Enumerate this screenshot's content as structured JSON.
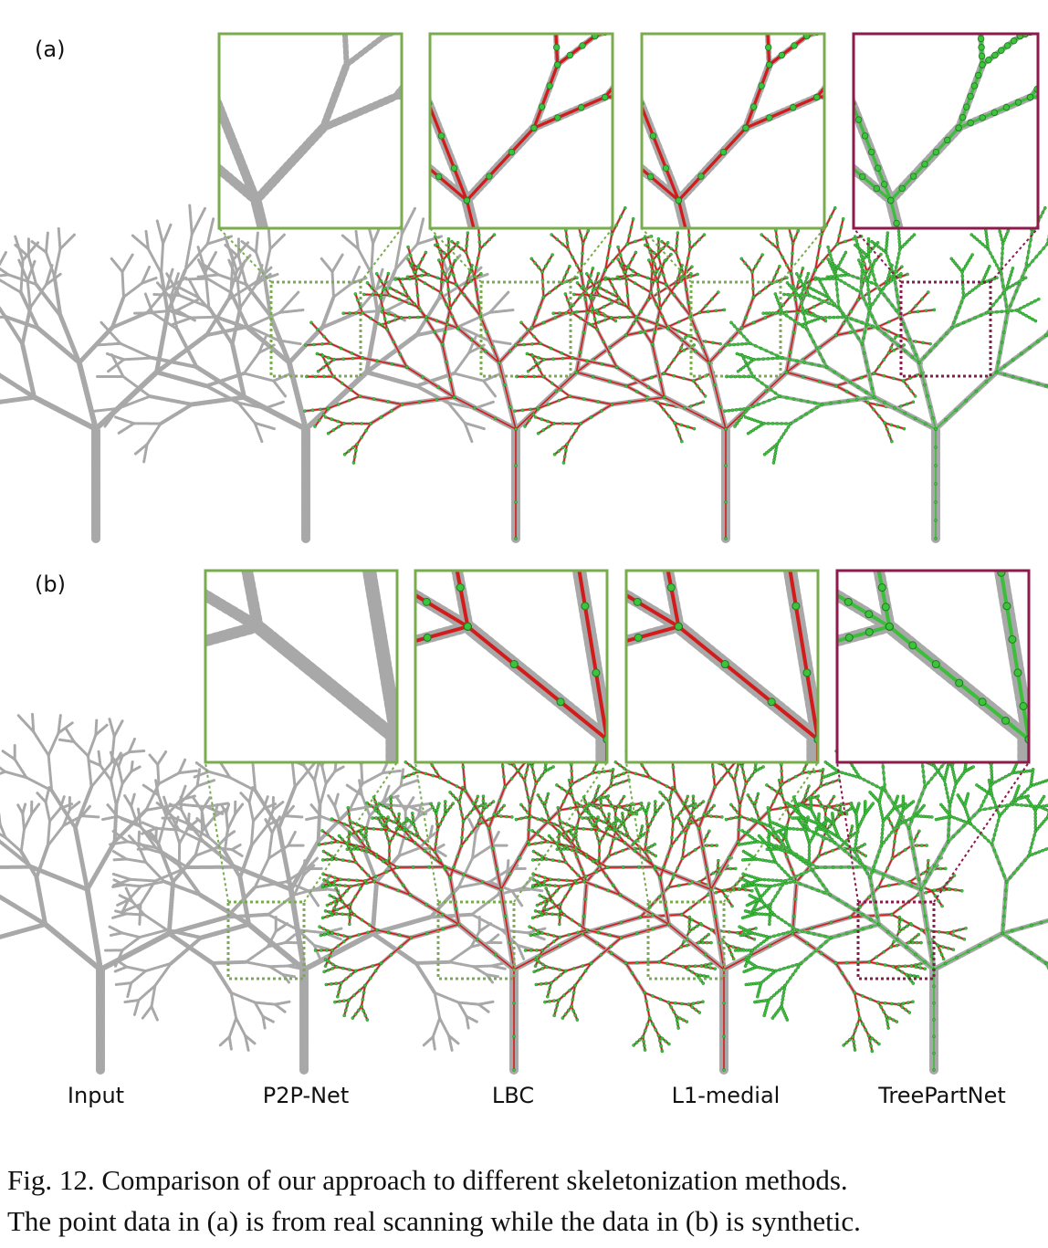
{
  "panels": [
    {
      "label": "(a)"
    },
    {
      "label": "(b)"
    }
  ],
  "columns": [
    "Input",
    "P2P-Net",
    "LBC",
    "L1-medial",
    "TreePartNet"
  ],
  "caption": {
    "lines": [
      "Fig. 12.  Comparison of our approach to different skeletonization methods.",
      "The point data in (a) is from real scanning while the data in (b) is synthetic."
    ]
  }
}
